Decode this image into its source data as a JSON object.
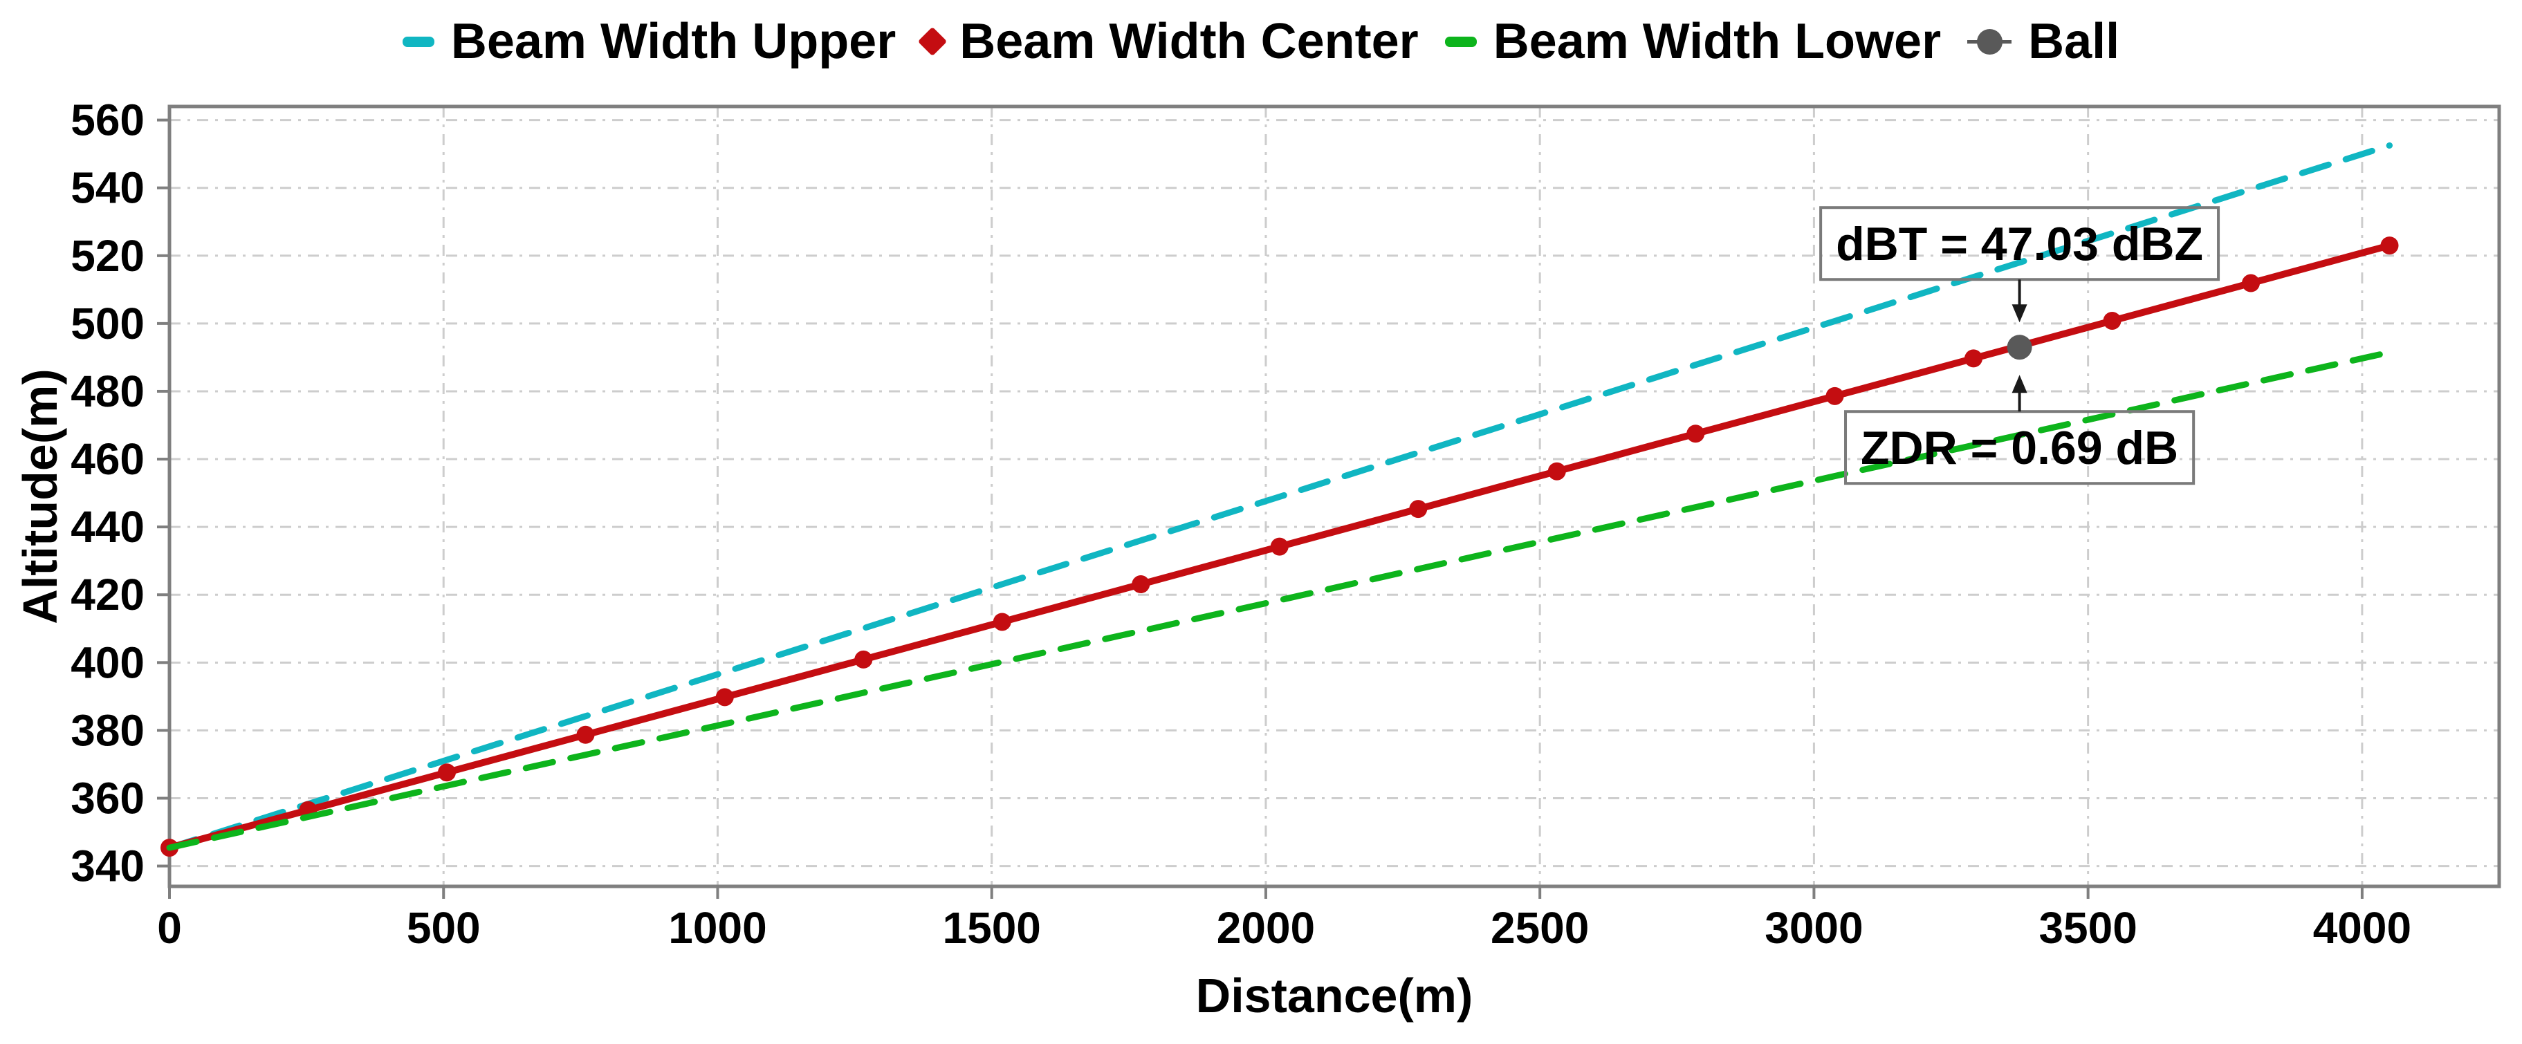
{
  "legend": {
    "items": [
      {
        "label": "Beam Width Upper",
        "color": "#10b6c2",
        "marker": "dash"
      },
      {
        "label": "Beam Width Center",
        "color": "#c40d11",
        "marker": "diamond"
      },
      {
        "label": "Beam Width Lower",
        "color": "#0db41c",
        "marker": "dash"
      },
      {
        "label": "Ball",
        "color": "#595959",
        "marker": "circle"
      }
    ]
  },
  "chart_data": {
    "type": "line",
    "title": "",
    "xlabel": "Distance(m)",
    "ylabel": "Altitude(m)",
    "xlim": [
      0,
      4250
    ],
    "ylim": [
      334,
      564
    ],
    "xticks": [
      0,
      500,
      1000,
      1500,
      2000,
      2500,
      3000,
      3500,
      4000
    ],
    "yticks": [
      340,
      360,
      380,
      400,
      420,
      440,
      460,
      480,
      500,
      520,
      540,
      560
    ],
    "grid": true,
    "legend_position": "top",
    "series": [
      {
        "name": "Beam Width Upper",
        "color": "#10b6c2",
        "style": "dashed",
        "marker": "none",
        "x": [
          0,
          253,
          506,
          759,
          1013,
          1266,
          1519,
          1772,
          2025,
          2278,
          2531,
          2784,
          3038,
          3291,
          3544,
          3797,
          4050
        ],
        "y": [
          345.4,
          358.3,
          371.3,
          384.2,
          397.2,
          410.1,
          423.1,
          436.0,
          448.9,
          461.9,
          474.8,
          487.8,
          500.7,
          513.7,
          526.6,
          539.6,
          552.5
        ]
      },
      {
        "name": "Beam Width Center",
        "color": "#c40d11",
        "style": "solid",
        "marker": "circle",
        "x": [
          0,
          253,
          506,
          759,
          1013,
          1266,
          1519,
          1772,
          2025,
          2278,
          2531,
          2784,
          3038,
          3291,
          3544,
          3797,
          4050
        ],
        "y": [
          345.4,
          356.5,
          367.6,
          378.7,
          389.8,
          400.9,
          412.0,
          423.1,
          434.2,
          445.3,
          456.4,
          467.5,
          478.6,
          489.7,
          500.8,
          511.9,
          523.0
        ]
      },
      {
        "name": "Beam Width Lower",
        "color": "#0db41c",
        "style": "dashed",
        "marker": "none",
        "x": [
          0,
          253,
          506,
          759,
          1013,
          1266,
          1519,
          1772,
          2025,
          2278,
          2531,
          2784,
          3038,
          3291,
          3544,
          3797,
          4050
        ],
        "y": [
          345.4,
          354.5,
          363.7,
          372.8,
          381.9,
          391.1,
          400.2,
          409.3,
          418.4,
          427.6,
          436.7,
          445.8,
          455.0,
          464.1,
          473.2,
          482.4,
          491.5
        ]
      },
      {
        "name": "Ball",
        "color": "#595959",
        "style": "point",
        "marker": "ball",
        "x": [
          3375
        ],
        "y": [
          493
        ]
      }
    ],
    "annotations": [
      {
        "text": "dBT = 47.03 dBZ",
        "position": "above",
        "target_x": 3375,
        "target_y": 493
      },
      {
        "text": "ZDR = 0.69 dB",
        "position": "below",
        "target_x": 3375,
        "target_y": 493
      }
    ],
    "colors": {
      "grid": "#cdcdcd",
      "axis": "#7f7f7f",
      "tick_label": "#000000",
      "axis_label": "#000000",
      "annotation_border": "#7a7a7a",
      "annotation_text": "#000000",
      "arrow": "#1a1a1a"
    }
  }
}
